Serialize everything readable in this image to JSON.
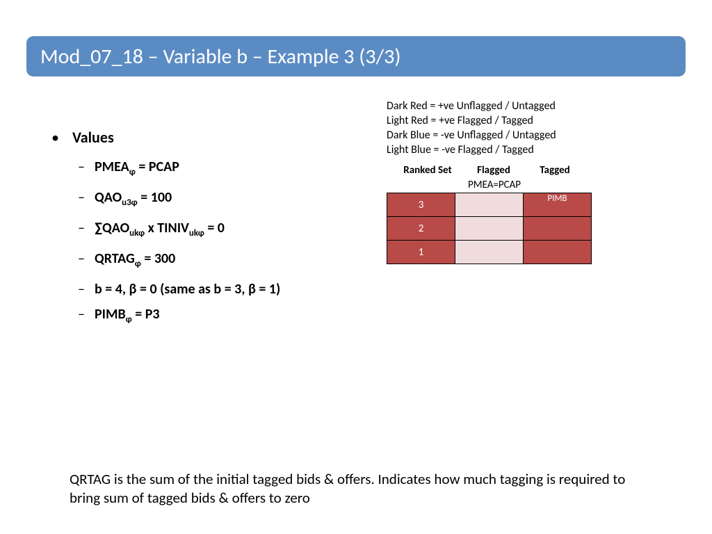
{
  "title": "Mod_07_18 – Variable b – Example 3 (3/3)",
  "main_bullet": "Values",
  "sub_bullets": [
    {
      "html": "PMEA<sub>ɸ</sub> = PCAP"
    },
    {
      "html": "QAO<sub>u3ɸ</sub> = 100"
    },
    {
      "html": "∑QAO<sub>ukɸ</sub> x TINIV<sub>ukɸ</sub> = 0"
    },
    {
      "html": "QRTAG<sub>ɸ</sub> = 300"
    },
    {
      "html": "b = 4, β = 0 (same as b = 3, β = 1)"
    },
    {
      "html": "PIMB<sub>ɸ</sub> = P3"
    }
  ],
  "legend_lines": [
    "Dark Red = +ve Unflagged / Untagged",
    "Light Red = +ve Flagged / Tagged",
    "Dark Blue = -ve Unflagged / Untagged",
    "Light Blue = -ve Flagged / Tagged"
  ],
  "table": {
    "col_headers": [
      "Ranked Set",
      "Flagged",
      "Tagged"
    ],
    "top_label": "PMEA=PCAP",
    "pimb_label": "PIMB",
    "rows": [
      {
        "rank": "3",
        "ranked_color": "#b84a48",
        "flagged_color": "#f0dcdc",
        "tagged_color": "#b84a48",
        "show_pimb": true
      },
      {
        "rank": "2",
        "ranked_color": "#b84a48",
        "flagged_color": "#f0dcdc",
        "tagged_color": "#b84a48",
        "show_pimb": false
      },
      {
        "rank": "1",
        "ranked_color": "#b84a48",
        "flagged_color": "#f0dcdc",
        "tagged_color": "#b84a48",
        "show_pimb": false
      }
    ],
    "colors": {
      "dark_red": "#b84a48",
      "light_red": "#f0dcdc",
      "border": "#000000"
    }
  },
  "footer": "QRTAG is the sum of the initial tagged bids & offers. Indicates how much tagging is required to bring sum of tagged bids & offers to zero"
}
